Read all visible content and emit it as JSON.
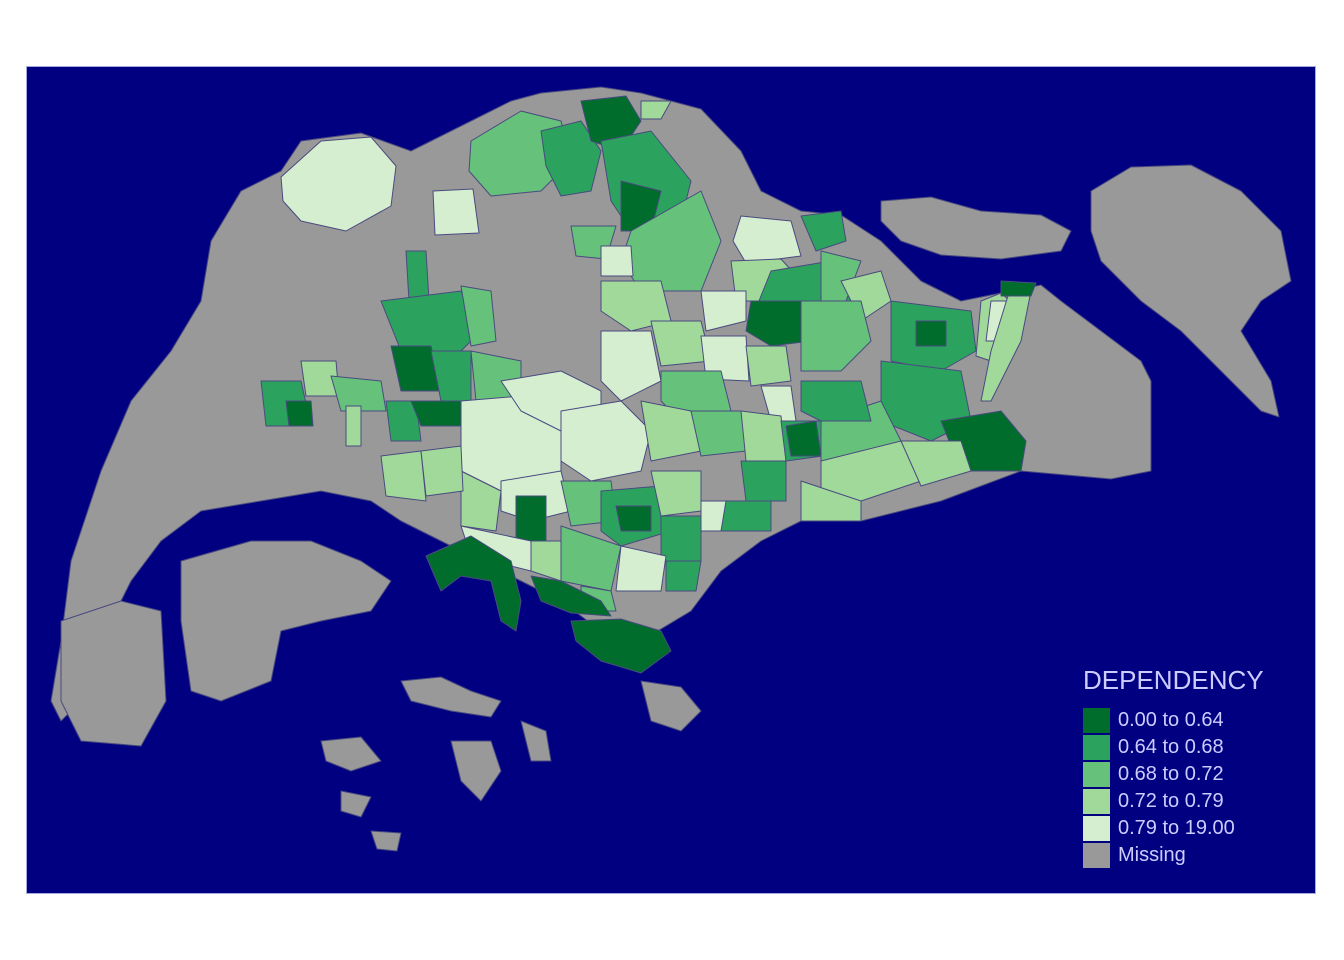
{
  "map": {
    "background_color": "#000080",
    "border_color": "#4a4a80",
    "land_missing_color": "#999999"
  },
  "legend": {
    "title": "DEPENDENCY",
    "entries": [
      {
        "label": "0.00 to 0.64",
        "color": "#006d2c"
      },
      {
        "label": "0.64 to 0.68",
        "color": "#2ca25f"
      },
      {
        "label": "0.68 to 0.72",
        "color": "#66c27b"
      },
      {
        "label": "0.72 to 0.79",
        "color": "#a1d99b"
      },
      {
        "label": "0.79 to 19.00",
        "color": "#d6eed0"
      },
      {
        "label": "Missing",
        "color": "#999999"
      }
    ]
  }
}
